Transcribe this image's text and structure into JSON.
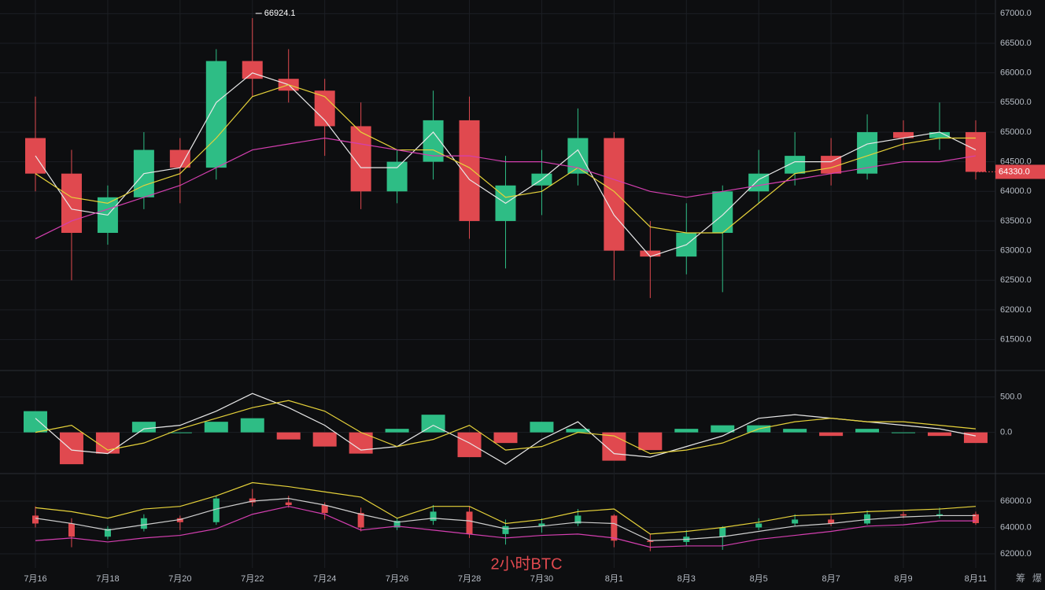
{
  "chart_data": [
    {
      "type": "candlestick",
      "x": [
        "7月16",
        null,
        "7月18",
        null,
        "7月20",
        null,
        "7月22",
        null,
        "7月24",
        null,
        "7月26",
        null,
        "7月28",
        null,
        "7月30",
        null,
        "8月1",
        null,
        "8月3",
        null,
        "8月5",
        null,
        "8月7",
        null,
        "8月9",
        null,
        "8月11"
      ],
      "open": [
        64900,
        64300,
        63300,
        63900,
        64700,
        64400,
        66200,
        65900,
        65700,
        65100,
        64000,
        64500,
        65200,
        63500,
        64100,
        64300,
        64900,
        63000,
        62900,
        63300,
        64000,
        64300,
        64600,
        64300,
        65000,
        64900,
        65000
      ],
      "high": [
        65600,
        64700,
        64100,
        65000,
        64900,
        66400,
        66924.1,
        66400,
        65900,
        65500,
        64700,
        65700,
        65600,
        64600,
        64700,
        65400,
        65000,
        63500,
        63800,
        64100,
        64700,
        65000,
        64900,
        65300,
        65200,
        65500,
        65200
      ],
      "low": [
        64000,
        62500,
        63100,
        63700,
        63800,
        64200,
        65600,
        65500,
        64600,
        63700,
        63800,
        64200,
        63200,
        62700,
        63600,
        64100,
        62500,
        62200,
        62600,
        62300,
        63800,
        64100,
        64100,
        64200,
        64700,
        64700,
        64200
      ],
      "close": [
        64300,
        63300,
        63900,
        64700,
        64400,
        66200,
        65900,
        65700,
        65100,
        64000,
        64500,
        65200,
        63500,
        64100,
        64300,
        64900,
        63000,
        62900,
        63300,
        64000,
        64300,
        64600,
        64300,
        65000,
        64900,
        65000,
        64330
      ],
      "up_color": "#2ebd85",
      "down_color": "#e0494f",
      "ma_lines": [
        {
          "color": "#e8e8e8",
          "values": [
            64600,
            63700,
            63600,
            64300,
            64400,
            65500,
            66000,
            65800,
            65200,
            64400,
            64400,
            65000,
            64200,
            63800,
            64200,
            64700,
            63600,
            62900,
            63100,
            63600,
            64200,
            64500,
            64500,
            64800,
            64900,
            65000,
            64700
          ]
        },
        {
          "color": "#e6d23a",
          "values": [
            64300,
            63900,
            63800,
            64100,
            64300,
            64900,
            65600,
            65800,
            65600,
            65000,
            64700,
            64700,
            64400,
            63900,
            64000,
            64400,
            64000,
            63400,
            63300,
            63300,
            63800,
            64300,
            64400,
            64600,
            64800,
            64900,
            64900
          ]
        },
        {
          "color": "#d43fb0",
          "values": [
            63200,
            63500,
            63700,
            63900,
            64100,
            64400,
            64700,
            64800,
            64900,
            64800,
            64700,
            64600,
            64600,
            64500,
            64500,
            64400,
            64200,
            64000,
            63900,
            64000,
            64100,
            64200,
            64300,
            64400,
            64500,
            64500,
            64600
          ]
        }
      ],
      "high_marker": 66924.1,
      "last_price": {
        "value": 64330,
        "label": "64330.0"
      },
      "ylim": [
        60990,
        67230
      ],
      "yticks": [
        {
          "value": 61500,
          "label": "61500.0"
        },
        {
          "value": 62000,
          "label": "62000.0"
        },
        {
          "value": 62500,
          "label": "62500.0"
        },
        {
          "value": 63000,
          "label": "63000.0"
        },
        {
          "value": 63500,
          "label": "63500.0"
        },
        {
          "value": 64000,
          "label": "64000.0"
        },
        {
          "value": 64500,
          "label": "64500.0"
        },
        {
          "value": 65000,
          "label": "65000.0"
        },
        {
          "value": 65500,
          "label": "65500.0"
        },
        {
          "value": 66000,
          "label": "66000.0"
        },
        {
          "value": 66500,
          "label": "66500.0"
        },
        {
          "value": 67000,
          "label": "67000.0"
        }
      ],
      "grid": true
    },
    {
      "type": "macd",
      "histogram": [
        300,
        -450,
        -300,
        150,
        0,
        150,
        200,
        -100,
        -200,
        -300,
        50,
        250,
        -350,
        -150,
        150,
        50,
        -400,
        -250,
        50,
        100,
        100,
        50,
        -50,
        50,
        0,
        -50,
        -150
      ],
      "lines": [
        {
          "color": "#e8e8e8",
          "values": [
            200,
            -250,
            -300,
            50,
            100,
            300,
            550,
            350,
            100,
            -250,
            -200,
            100,
            -150,
            -450,
            -100,
            150,
            -300,
            -350,
            -200,
            -50,
            200,
            250,
            200,
            150,
            100,
            50,
            -50
          ]
        },
        {
          "color": "#e6d23a",
          "values": [
            0,
            100,
            -250,
            -150,
            50,
            200,
            350,
            450,
            300,
            0,
            -200,
            -100,
            100,
            -250,
            -200,
            0,
            -50,
            -300,
            -250,
            -150,
            50,
            150,
            200,
            150,
            150,
            100,
            50
          ]
        }
      ],
      "up_color": "#2ebd85",
      "down_color": "#e0494f",
      "ylim": [
        -560,
        830
      ],
      "yticks": [
        {
          "value": 0,
          "label": "0.0"
        },
        {
          "value": 500,
          "label": "500.0"
        }
      ]
    },
    {
      "type": "bands",
      "lines": [
        {
          "color": "#e6d23a",
          "values": [
            65500,
            65200,
            64700,
            65400,
            65600,
            66400,
            67400,
            67100,
            66700,
            66300,
            64700,
            65600,
            65600,
            64300,
            64600,
            65200,
            65400,
            63500,
            63700,
            64000,
            64400,
            64900,
            65000,
            65200,
            65300,
            65400,
            65600
          ]
        },
        {
          "color": "#cfcfcf",
          "values": [
            64700,
            64300,
            63800,
            64200,
            64600,
            65400,
            66000,
            66200,
            65700,
            65000,
            64400,
            64700,
            64500,
            63900,
            64100,
            64400,
            64300,
            63000,
            63100,
            63300,
            63700,
            64100,
            64300,
            64600,
            64800,
            64900,
            64900
          ]
        },
        {
          "color": "#d43fb0",
          "values": [
            63000,
            63200,
            62900,
            63200,
            63400,
            63900,
            65000,
            65600,
            65000,
            63800,
            64100,
            63800,
            63500,
            63200,
            63400,
            63500,
            63200,
            62500,
            62600,
            62600,
            63100,
            63400,
            63700,
            64100,
            64200,
            64500,
            64500
          ]
        }
      ],
      "ylim": [
        60925,
        67910
      ],
      "yticks": [
        {
          "value": 62000,
          "label": "62000.0"
        },
        {
          "value": 64000,
          "label": "64000.0"
        },
        {
          "value": 66000,
          "label": "66000.0"
        }
      ]
    }
  ],
  "watermark": "2小时BTC",
  "toolbar": [
    "筹",
    "爆"
  ]
}
